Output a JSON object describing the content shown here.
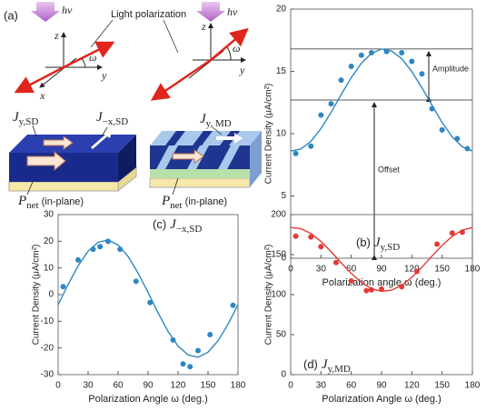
{
  "diagram": {
    "panel": "(a)",
    "photon_left": "hν",
    "photon_right": "hν",
    "polarization": "Light polarization",
    "axes_left": {
      "z": "z",
      "y": "y",
      "x": "x",
      "angle": "ω"
    },
    "axes_right": {
      "z": "z",
      "y": "y",
      "angle": "ω"
    },
    "current_1": {
      "symbol": "J",
      "subscript": "y,SD"
    },
    "current_2": {
      "symbol": "J",
      "subscript": "−x,SD"
    },
    "current_3": {
      "symbol": "J",
      "subscript": "y, MD"
    },
    "moment_left": {
      "symbol": "P",
      "subscript": "net",
      "note": "(in-plane)"
    },
    "moment_right": {
      "symbol": "P",
      "subscript": "net",
      "note": "(in-plane)"
    }
  },
  "chart_data": [
    {
      "type": "scatter",
      "panel": "(b)",
      "title": "J",
      "title_subscript": "y,SD",
      "x_label": "Polarization angle ω (deg.)",
      "y_label": "Current Density (μA/cm²)",
      "color": "#2e86c1",
      "xlim": [
        0,
        180
      ],
      "xticks": [
        0,
        30,
        60,
        90,
        120,
        150,
        180
      ],
      "ylim": [
        0,
        20
      ],
      "yticks": [
        0,
        5,
        10,
        15,
        20
      ],
      "points": {
        "x": [
          5,
          20,
          30,
          40,
          50,
          60,
          70,
          80,
          95,
          110,
          120,
          130,
          140,
          150,
          165,
          175
        ],
        "values": [
          8.4,
          9.0,
          11.5,
          12.4,
          14.3,
          15.4,
          16.3,
          16.5,
          16.6,
          16.5,
          15.8,
          14.8,
          12.0,
          10.3,
          9.6,
          8.8
        ]
      },
      "fit": {
        "x": [
          0,
          10,
          20,
          30,
          40,
          50,
          60,
          70,
          80,
          90,
          100,
          110,
          120,
          130,
          140,
          150,
          160,
          170,
          180
        ],
        "values": [
          8.61,
          8.76,
          9.38,
          10.41,
          11.71,
          13.13,
          14.5,
          15.65,
          16.45,
          16.79,
          16.64,
          16.02,
          14.99,
          13.69,
          12.27,
          10.9,
          9.75,
          8.95,
          8.61
        ]
      },
      "hlines": [
        16.8,
        12.7
      ],
      "amplitude_label": "Amplitude",
      "offset_label": "Offset"
    },
    {
      "type": "scatter",
      "panel": "(c)",
      "title": "J",
      "title_subscript": "−x,SD",
      "x_label": "Polarization Angle ω (deg.)",
      "y_label": "Current Density (μA/cm²)",
      "color": "#2e86c1",
      "xlim": [
        0,
        180
      ],
      "xticks": [
        0,
        30,
        60,
        90,
        120,
        150,
        180
      ],
      "ylim": [
        -30,
        30
      ],
      "yticks": [
        -30,
        -20,
        -10,
        0,
        10,
        20,
        30
      ],
      "points": {
        "x": [
          5,
          20,
          35,
          42,
          50,
          62,
          78,
          92,
          115,
          125,
          132,
          140,
          152,
          175
        ],
        "values": [
          3,
          13,
          17,
          18,
          20,
          17,
          5,
          -3,
          -17,
          -26,
          -27,
          -21,
          -15,
          -4
        ]
      },
      "fit": {
        "x": [
          0,
          10,
          20,
          30,
          40,
          50,
          60,
          70,
          80,
          90,
          100,
          110,
          120,
          130,
          140,
          150,
          160,
          170,
          180
        ],
        "values": [
          -3.8,
          3.8,
          10.8,
          16.3,
          19.6,
          20.5,
          18.6,
          14.3,
          8.1,
          0.8,
          -6.8,
          -13.8,
          -19.3,
          -22.6,
          -23.5,
          -21.6,
          -17.3,
          -11.1,
          -3.8
        ]
      }
    },
    {
      "type": "scatter",
      "panel": "(d)",
      "title": "J",
      "title_subscript": "y,MD",
      "x_label": "Polarization Angle ω (deg.)",
      "y_label": "Current Density (μA/cm²)",
      "color": "#e53935",
      "xlim": [
        0,
        180
      ],
      "xticks": [
        0,
        30,
        60,
        90,
        120,
        150,
        180
      ],
      "ylim": [
        0,
        200
      ],
      "yticks": [
        0,
        50,
        100,
        150,
        200
      ],
      "points": {
        "x": [
          5,
          20,
          30,
          45,
          60,
          75,
          80,
          90,
          110,
          125,
          145,
          160,
          170
        ],
        "values": [
          173,
          172,
          160,
          140,
          117,
          105,
          106,
          107,
          110,
          129,
          163,
          177,
          178
        ]
      },
      "fit": {
        "x": [
          0,
          10,
          20,
          30,
          40,
          50,
          60,
          70,
          80,
          90,
          100,
          110,
          120,
          130,
          140,
          150,
          160,
          170,
          180
        ],
        "values": [
          183.9,
          182.4,
          176.4,
          166.4,
          153.7,
          139.8,
          126.5,
          115.2,
          107.4,
          104.1,
          105.6,
          111.6,
          121.6,
          134.3,
          148.2,
          161.5,
          172.8,
          180.6,
          183.9
        ]
      }
    }
  ]
}
